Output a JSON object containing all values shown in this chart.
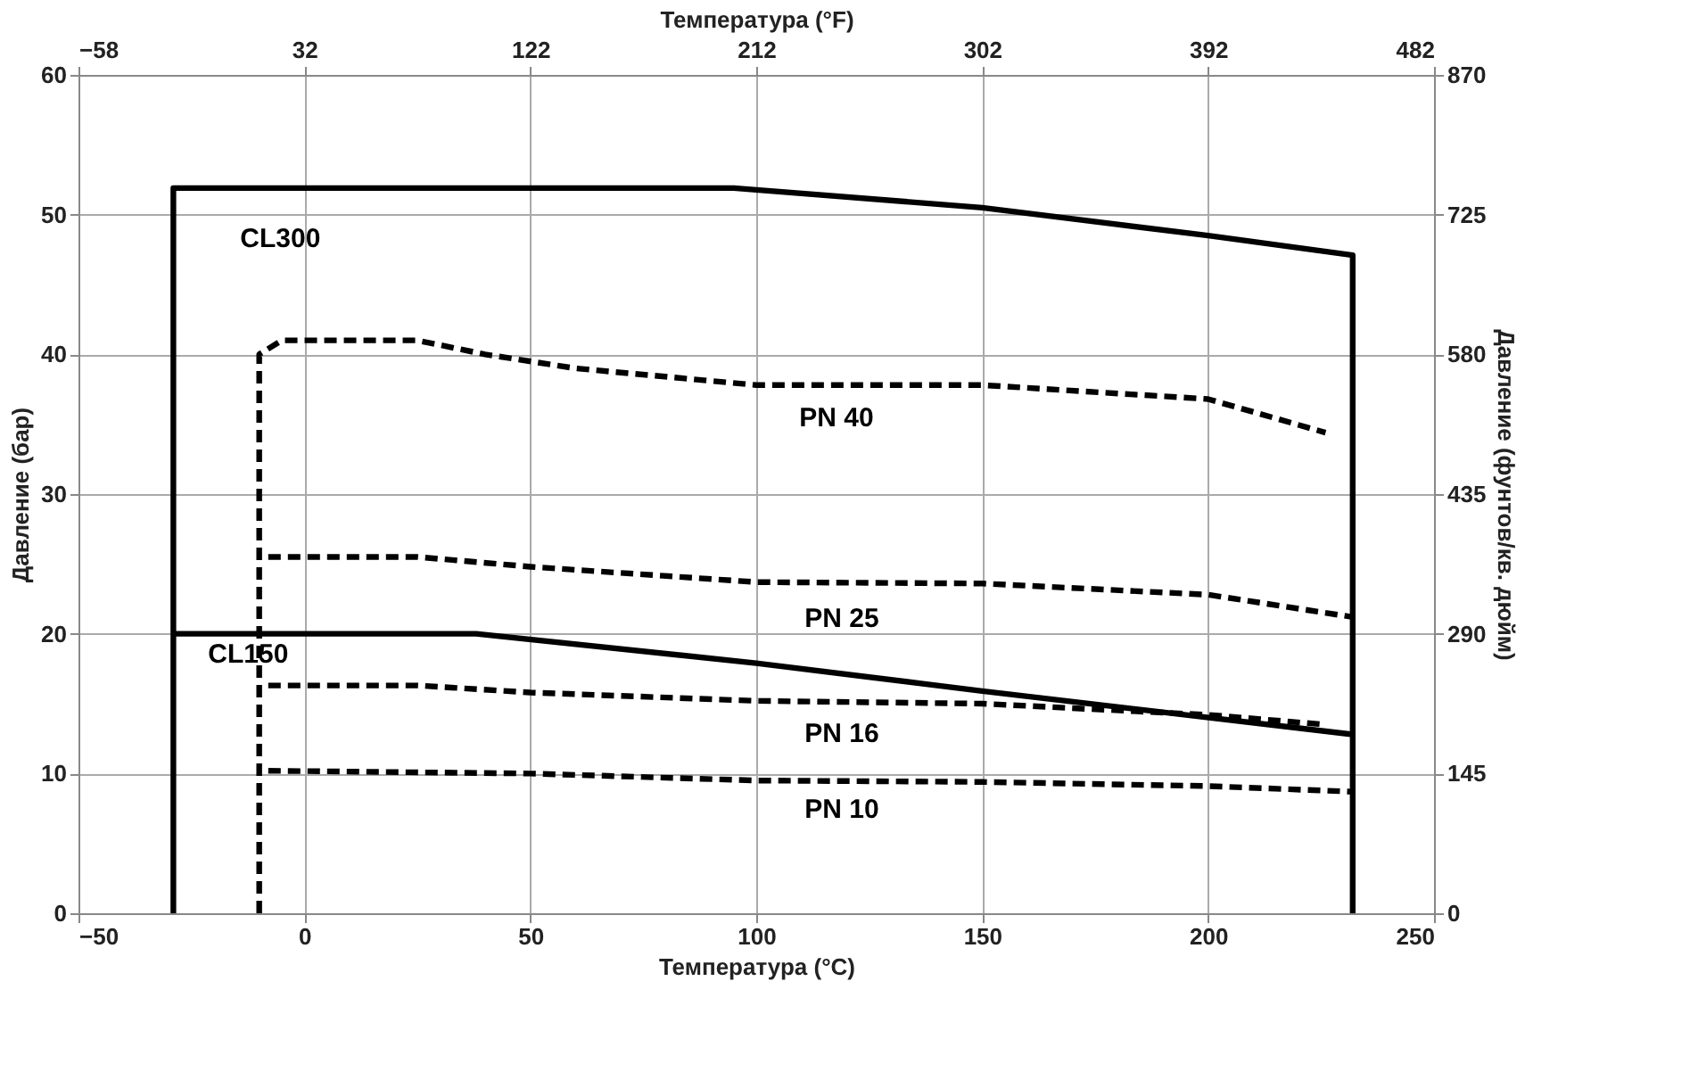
{
  "chart_data": {
    "type": "line",
    "xlabel": "Температура (°C)",
    "ylabel": "Давление (бар)",
    "x2label": "Температура (°F)",
    "y2label": "Давление (фунтов/кв. дюйм)",
    "xlim": [
      -50,
      250
    ],
    "xticks": [
      -50,
      0,
      50,
      100,
      150,
      200,
      250
    ],
    "ylim": [
      0,
      60
    ],
    "yticks": [
      0,
      10,
      20,
      30,
      40,
      50,
      60
    ],
    "x2lim": [
      -58,
      482
    ],
    "x2ticks": [
      -58,
      32,
      122,
      212,
      302,
      392,
      482
    ],
    "y2lim": [
      0,
      870
    ],
    "y2ticks": [
      0,
      145,
      290,
      435,
      580,
      725,
      870
    ],
    "grid": true,
    "marker": "none",
    "series": [
      {
        "name": "CL300",
        "color": "#000000",
        "line_style": "solid",
        "x": [
          -29,
          -29,
          95,
          150,
          200,
          232,
          232
        ],
        "values": [
          0,
          51.9,
          51.9,
          50.5,
          48.5,
          47.1,
          0
        ]
      },
      {
        "name": "CL150",
        "color": "#000000",
        "line_style": "solid",
        "x": [
          -29,
          38,
          100,
          150,
          232
        ],
        "values": [
          20,
          20,
          17.9,
          15.9,
          12.8
        ]
      },
      {
        "name": "PN 40",
        "color": "#000000",
        "line_style": "dashed",
        "x": [
          -10,
          -10,
          -5,
          25,
          40,
          60,
          100,
          150,
          200,
          226
        ],
        "values": [
          0,
          40,
          41,
          41,
          40,
          39,
          37.8,
          37.8,
          36.8,
          34.4
        ]
      },
      {
        "name": "PN 25",
        "color": "#000000",
        "line_style": "dashed",
        "x": [
          -8,
          25,
          50,
          100,
          150,
          200,
          232
        ],
        "values": [
          25.5,
          25.5,
          24.8,
          23.7,
          23.6,
          22.8,
          21.2
        ]
      },
      {
        "name": "PN 16",
        "color": "#000000",
        "line_style": "dashed",
        "x": [
          -8,
          25,
          50,
          100,
          150,
          200,
          226
        ],
        "values": [
          16.3,
          16.3,
          15.8,
          15.2,
          15,
          14.2,
          13.5
        ]
      },
      {
        "name": "PN 10",
        "color": "#000000",
        "line_style": "dashed",
        "x": [
          -8,
          50,
          100,
          150,
          200,
          232
        ],
        "values": [
          10.2,
          10,
          9.5,
          9.4,
          9.1,
          8.7
        ]
      }
    ]
  }
}
